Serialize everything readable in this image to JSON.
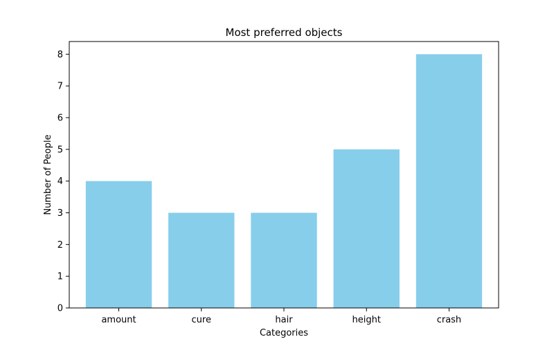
{
  "chart_data": {
    "type": "bar",
    "title": "Most preferred objects",
    "xlabel": "Categories",
    "ylabel": "Number of People",
    "categories": [
      "amount",
      "cure",
      "hair",
      "height",
      "crash"
    ],
    "values": [
      4,
      3,
      3,
      5,
      8
    ],
    "ylim": [
      0,
      8.4
    ],
    "yticks": [
      0,
      1,
      2,
      3,
      4,
      5,
      6,
      7,
      8
    ],
    "grid": false,
    "bar_color": "#87CEEB"
  }
}
